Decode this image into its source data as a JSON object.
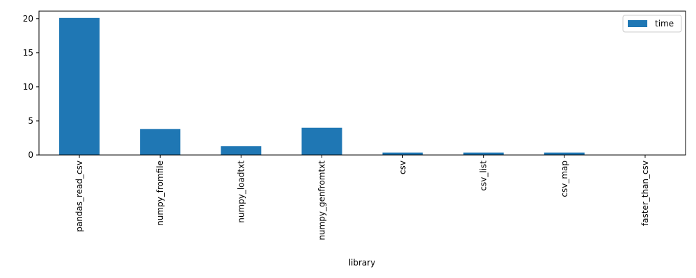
{
  "chart_data": {
    "type": "bar",
    "categories": [
      "pandas_read_csv",
      "numpy_fromfile",
      "numpy_loadtxt",
      "numpy_genfromtxt",
      "csv",
      "csv_list",
      "csv_map",
      "faster_than_csv"
    ],
    "series": [
      {
        "name": "time",
        "values": [
          20.1,
          3.8,
          1.3,
          4.0,
          0.35,
          0.35,
          0.35,
          0.05
        ],
        "color": "#1f77b4"
      }
    ],
    "xlabel": "library",
    "ylabel": "",
    "ylim": [
      0,
      21.1
    ],
    "yticks": [
      0,
      5,
      10,
      15,
      20
    ],
    "grid": false,
    "legend": "top-right"
  }
}
